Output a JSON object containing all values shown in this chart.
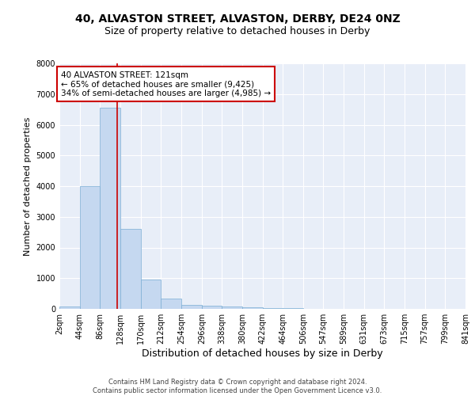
{
  "title1": "40, ALVASTON STREET, ALVASTON, DERBY, DE24 0NZ",
  "title2": "Size of property relative to detached houses in Derby",
  "xlabel": "Distribution of detached houses by size in Derby",
  "ylabel": "Number of detached properties",
  "bin_edges": [
    2,
    44,
    86,
    128,
    170,
    212,
    254,
    296,
    338,
    380,
    422,
    464,
    506,
    547,
    589,
    631,
    673,
    715,
    757,
    799,
    841
  ],
  "bar_heights": [
    80,
    4000,
    6550,
    2600,
    950,
    330,
    140,
    100,
    75,
    50,
    30,
    20,
    10,
    5,
    3,
    2,
    2,
    1,
    1,
    1
  ],
  "bar_color": "#c5d8f0",
  "bar_edgecolor": "#7aadd4",
  "vline_x": 121,
  "vline_color": "#cc0000",
  "annotation_text": "40 ALVASTON STREET: 121sqm\n← 65% of detached houses are smaller (9,425)\n34% of semi-detached houses are larger (4,985) →",
  "annotation_box_color": "#cc0000",
  "ylim": [
    0,
    8000
  ],
  "yticks": [
    0,
    1000,
    2000,
    3000,
    4000,
    5000,
    6000,
    7000,
    8000
  ],
  "background_color": "#e8eef8",
  "footer_text": "Contains HM Land Registry data © Crown copyright and database right 2024.\nContains public sector information licensed under the Open Government Licence v3.0.",
  "title1_fontsize": 10,
  "title2_fontsize": 9,
  "xlabel_fontsize": 9,
  "ylabel_fontsize": 8,
  "tick_fontsize": 7,
  "annotation_fontsize": 7.5,
  "footer_fontsize": 6
}
